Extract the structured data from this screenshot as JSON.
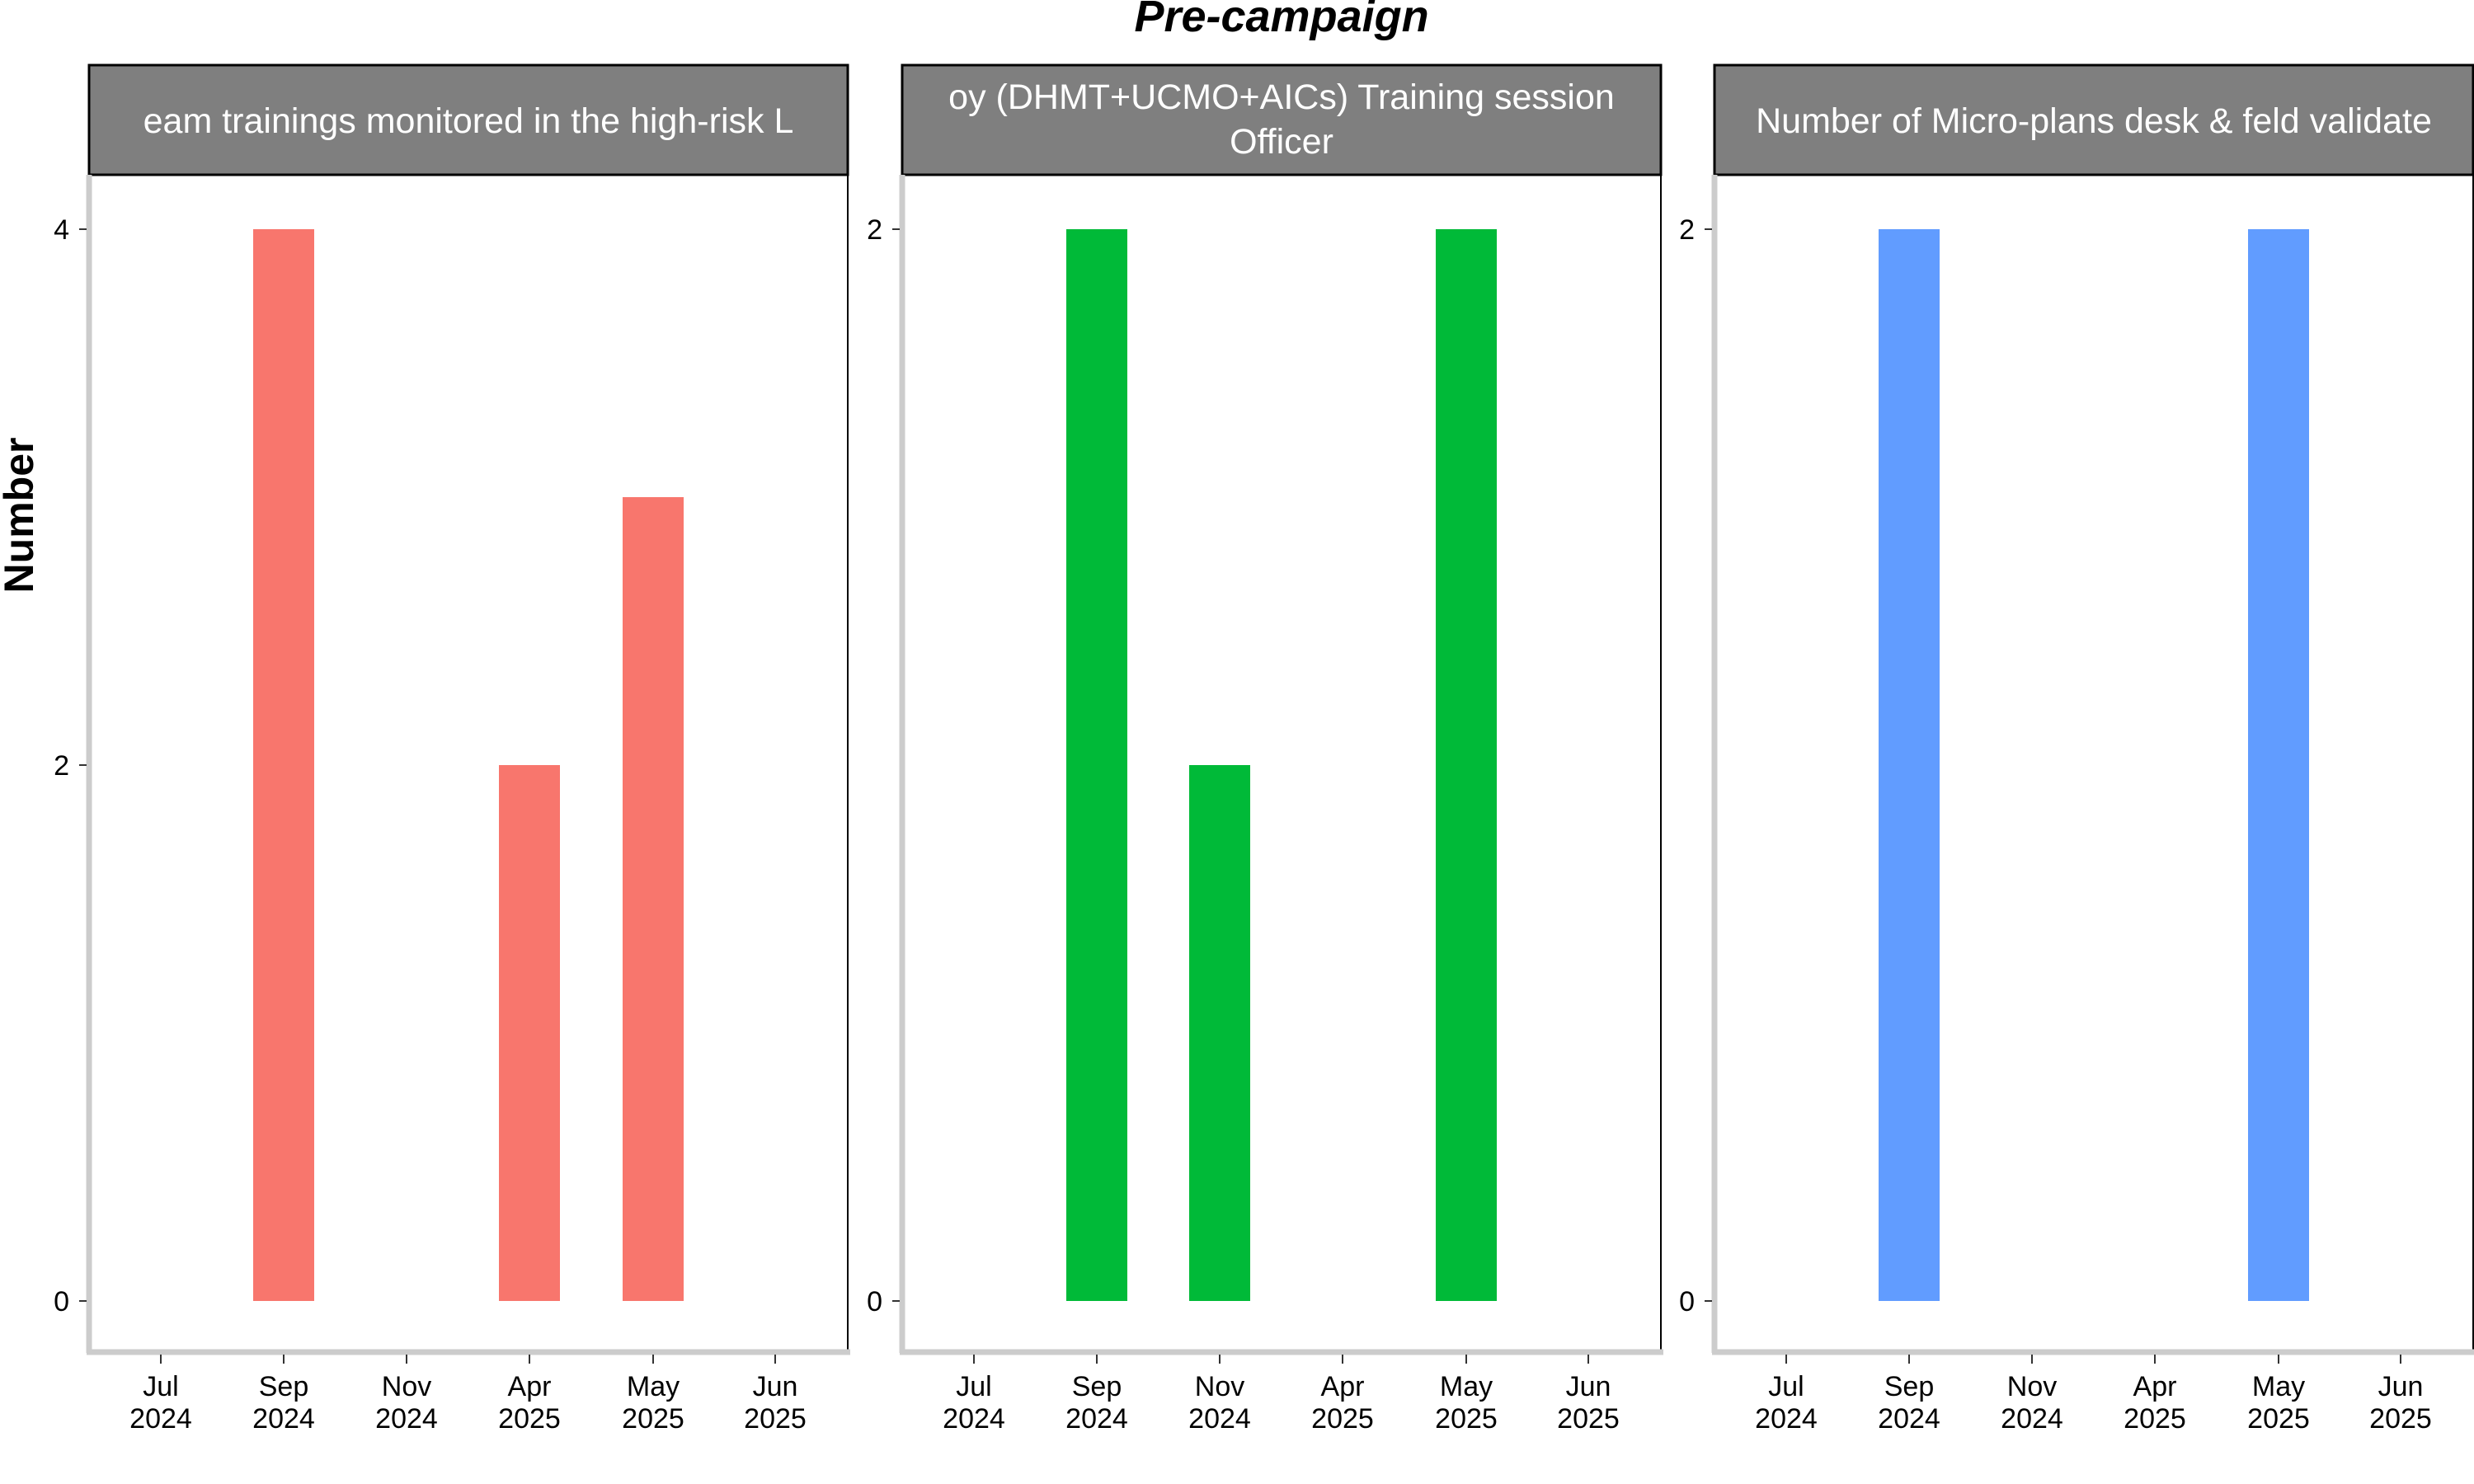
{
  "chart_data": {
    "type": "bar",
    "title": "Pre-campaign",
    "ylabel": "Number",
    "xlabel": "",
    "grid": false,
    "legend": "none",
    "x_ticks": [
      {
        "month": "Jul",
        "year": "2024"
      },
      {
        "month": "Sep",
        "year": "2024"
      },
      {
        "month": "Nov",
        "year": "2024"
      },
      {
        "month": "Apr",
        "year": "2025"
      },
      {
        "month": "May",
        "year": "2025"
      },
      {
        "month": "Jun",
        "year": "2025"
      }
    ],
    "panels": [
      {
        "facet_label": [
          "eam trainings monitored in the high-risk L"
        ],
        "color": "#F8766D",
        "ylim": [
          0,
          4
        ],
        "y_ticks": [
          "0",
          "2",
          "4"
        ],
        "bars": [
          {
            "x": "2024-09",
            "value": 4
          },
          {
            "x": "2025-04",
            "value": 2
          },
          {
            "x": "2025-05",
            "value": 3
          }
        ]
      },
      {
        "facet_label": [
          "oy (DHMT+UCMO+AICs) Training session",
          "Officer"
        ],
        "color": "#00BA38",
        "ylim": [
          0,
          2
        ],
        "y_ticks": [
          "0",
          "2"
        ],
        "bars": [
          {
            "x": "2024-09",
            "value": 2
          },
          {
            "x": "2024-11",
            "value": 1
          },
          {
            "x": "2025-05",
            "value": 2
          }
        ]
      },
      {
        "facet_label": [
          "Number of Micro-plans desk & feld validate"
        ],
        "color": "#619CFF",
        "ylim": [
          0,
          2
        ],
        "y_ticks": [
          "0",
          "2"
        ],
        "bars": [
          {
            "x": "2024-09",
            "value": 2
          },
          {
            "x": "2025-05",
            "value": 2
          }
        ]
      }
    ]
  }
}
